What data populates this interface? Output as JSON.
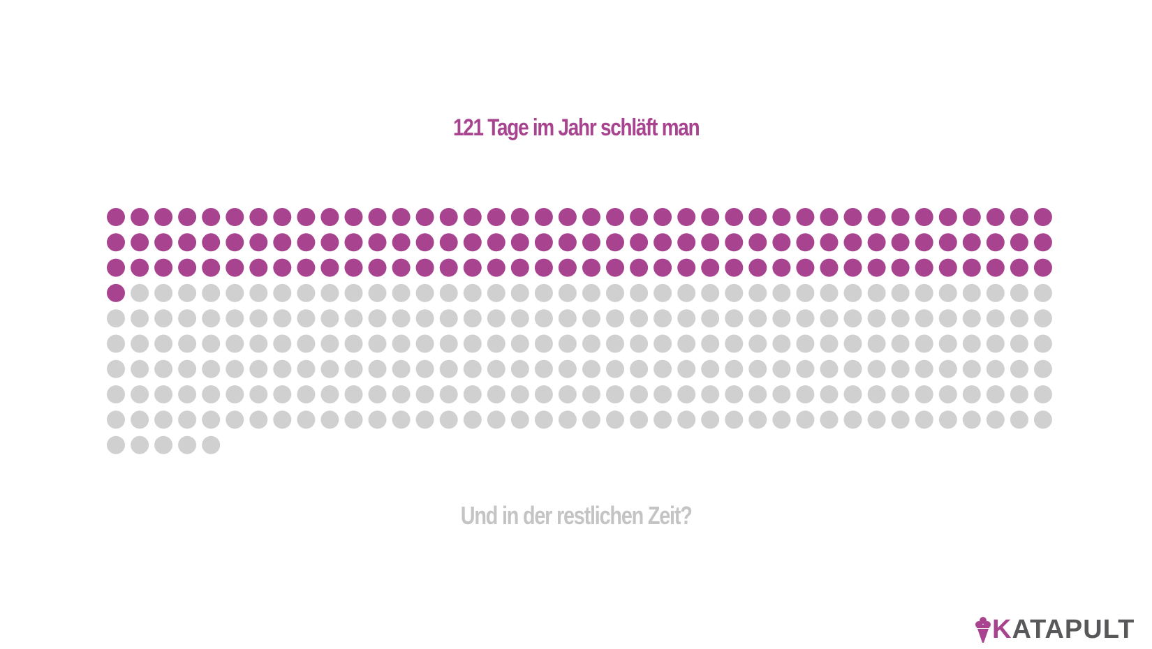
{
  "title": "121 Tage im Jahr schläft man",
  "subtitle": "Und in der restlichen Zeit?",
  "logo": {
    "first_letter": "K",
    "rest": "ATAPULT",
    "icon": "ice-cream-cone-icon"
  },
  "colors": {
    "highlight": "#a8448f",
    "rest": "#d0d0d0",
    "subtitle": "#c4c4c4",
    "logo_text": "#58585a"
  },
  "chart_data": {
    "type": "waffle",
    "total": 365,
    "highlighted": 121,
    "per_row": 40,
    "series": [
      {
        "value": 121
      },
      {
        "value": 244
      }
    ]
  }
}
